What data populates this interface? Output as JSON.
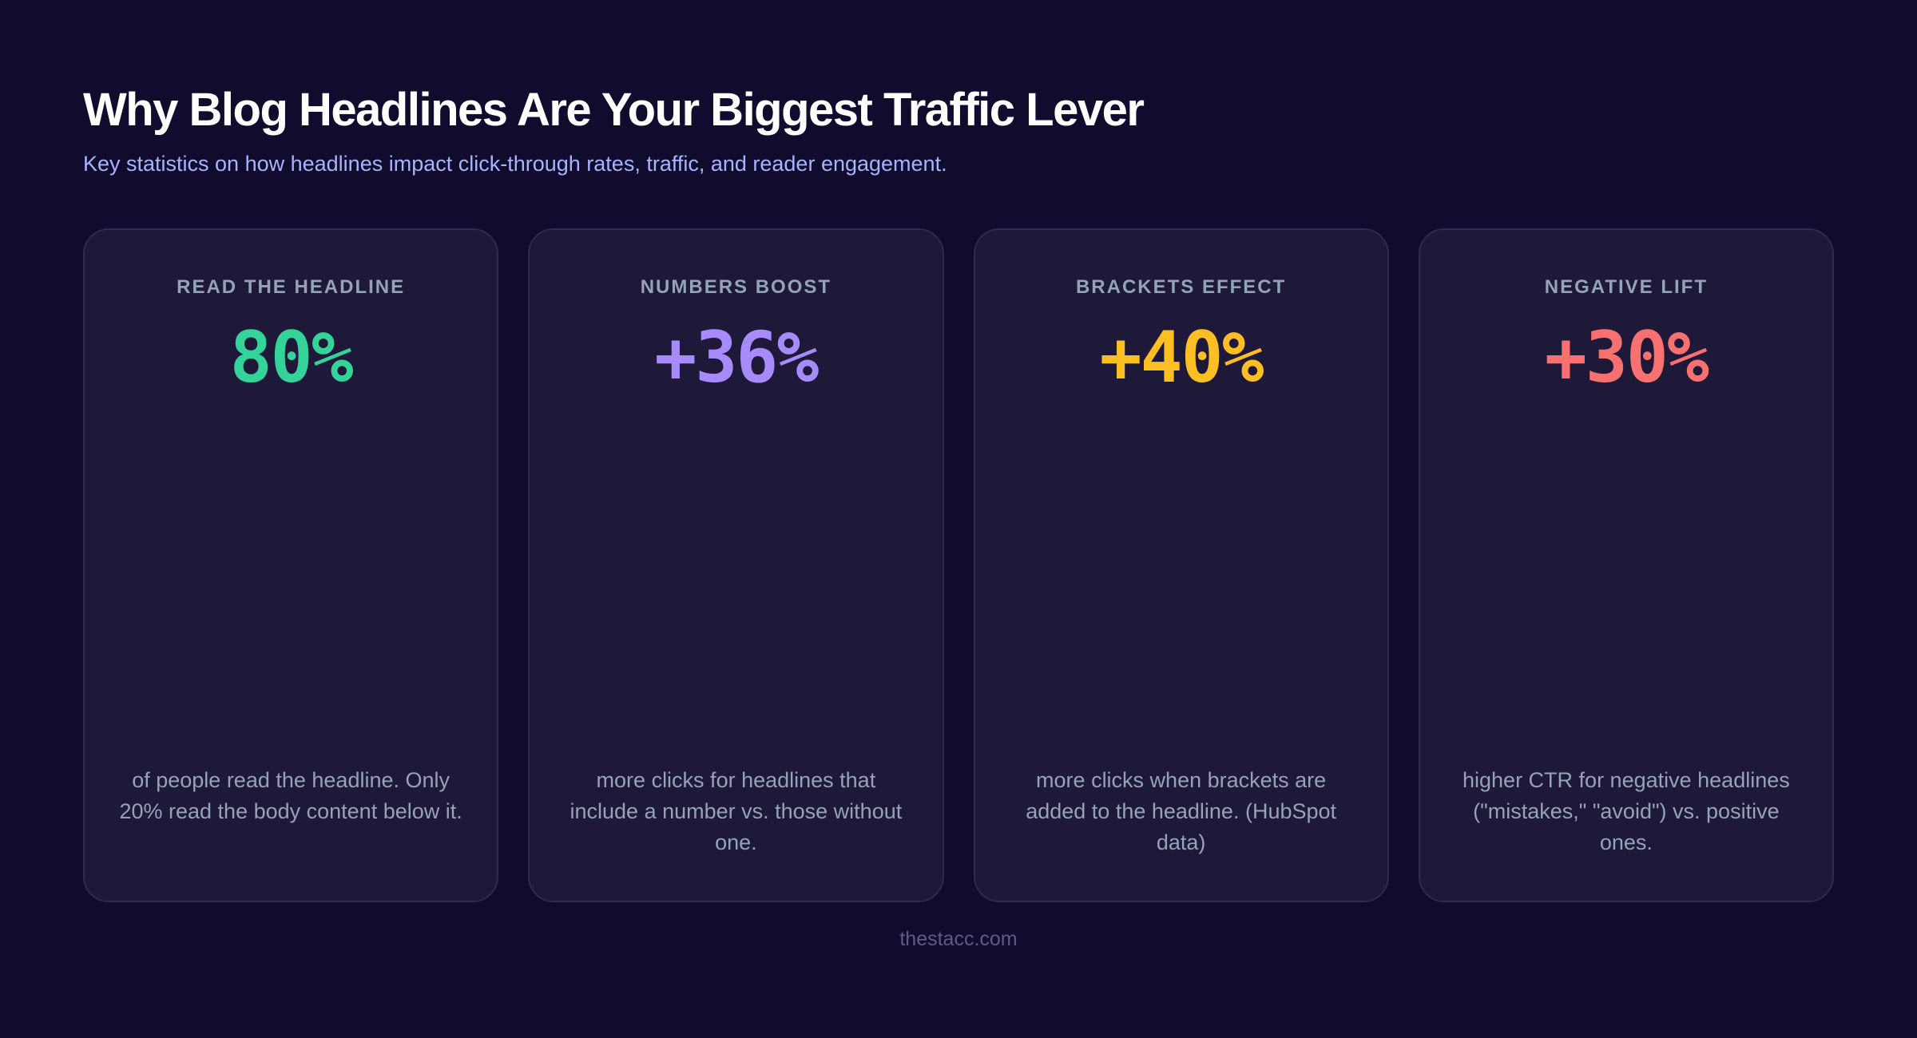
{
  "header": {
    "title": "Why Blog Headlines Are Your Biggest Traffic Lever",
    "subtitle": "Key statistics on how headlines impact click-through rates, traffic, and reader engagement."
  },
  "colors": {
    "background": "#110c2e",
    "card_background": "#1e1839",
    "card_border": "#2f2a4f",
    "green": "#34d399",
    "purple": "#a78bfa",
    "yellow": "#fbbf24",
    "red": "#f87171"
  },
  "cards": [
    {
      "label": "READ THE HEADLINE",
      "value": "80%",
      "color": "#34d399",
      "description": "of people read the headline. Only 20% read the body content below it."
    },
    {
      "label": "NUMBERS BOOST",
      "value": "+36%",
      "color": "#a78bfa",
      "description": "more clicks for headlines that include a number vs. those without one."
    },
    {
      "label": "BRACKETS EFFECT",
      "value": "+40%",
      "color": "#fbbf24",
      "description": "more clicks when brackets are added to the headline. (HubSpot data)"
    },
    {
      "label": "NEGATIVE LIFT",
      "value": "+30%",
      "color": "#f87171",
      "description": "higher CTR for negative headlines (\"mistakes,\" \"avoid\") vs. positive ones."
    }
  ],
  "footer": {
    "source": "thestacc.com"
  }
}
